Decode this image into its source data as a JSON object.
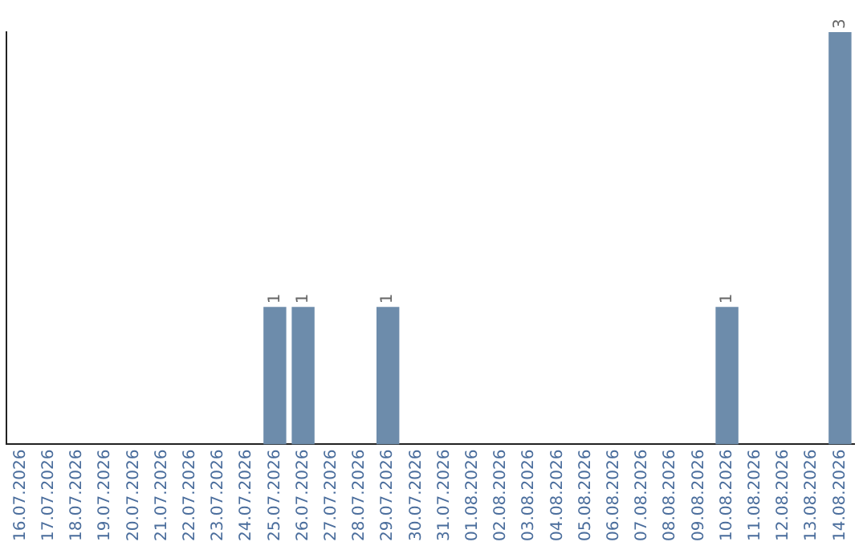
{
  "chart_data": {
    "type": "bar",
    "categories": [
      "16.07.2026",
      "17.07.2026",
      "18.07.2026",
      "19.07.2026",
      "20.07.2026",
      "21.07.2026",
      "22.07.2026",
      "23.07.2026",
      "24.07.2026",
      "25.07.2026",
      "26.07.2026",
      "27.07.2026",
      "28.07.2026",
      "29.07.2026",
      "30.07.2026",
      "31.07.2026",
      "01.08.2026",
      "02.08.2026",
      "03.08.2026",
      "04.08.2026",
      "05.08.2026",
      "06.08.2026",
      "07.08.2026",
      "08.08.2026",
      "09.08.2026",
      "10.08.2026",
      "11.08.2026",
      "12.08.2026",
      "13.08.2026",
      "14.08.2026"
    ],
    "values": [
      0,
      0,
      0,
      0,
      0,
      0,
      0,
      0,
      0,
      1,
      1,
      0,
      0,
      1,
      0,
      0,
      0,
      0,
      0,
      0,
      0,
      0,
      0,
      0,
      0,
      1,
      0,
      0,
      0,
      3
    ],
    "value_labels": [
      null,
      null,
      null,
      null,
      null,
      null,
      null,
      null,
      null,
      "1",
      "1",
      null,
      null,
      "1",
      null,
      null,
      null,
      null,
      null,
      null,
      null,
      null,
      null,
      null,
      null,
      "1",
      null,
      null,
      null,
      "3"
    ],
    "color": "#6d8cab",
    "ylim": [
      0,
      3
    ],
    "tick_labels": "x",
    "grid": false,
    "legend": false
  }
}
